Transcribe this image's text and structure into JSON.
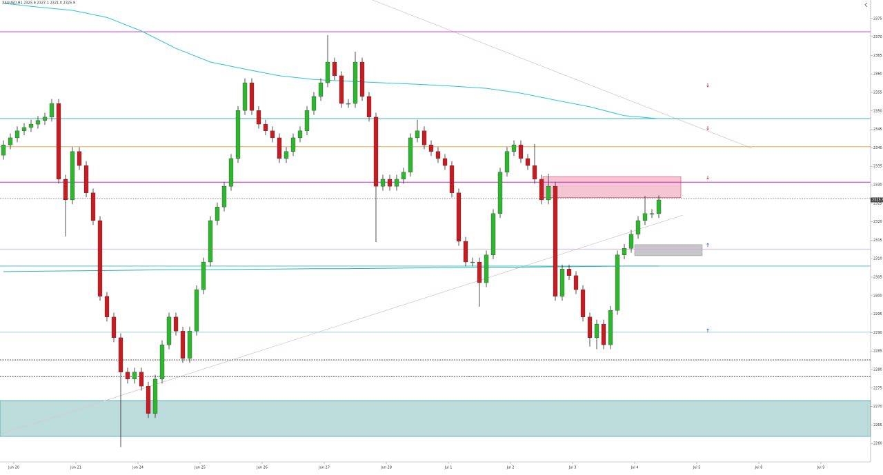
{
  "chart_data": {
    "type": "candlestick",
    "title": "XAUUSD,H1 2325.9 2327.1 2321.0 2325.9",
    "x_labels": [
      "Jun 20",
      "Jun 21",
      "Jun 24",
      "Jun 25",
      "Jun 26",
      "Jun 27",
      "Jun 28",
      "Jul 1",
      "Jul 2",
      "Jul 3",
      "Jul 4",
      "Jul 5",
      "Jul 8",
      "Jul 9"
    ],
    "ylim": [
      2255,
      2380
    ],
    "yticks": [
      2260,
      2265,
      2270,
      2275,
      2280,
      2285,
      2290,
      2295,
      2300,
      2305,
      2310,
      2315,
      2320,
      2325,
      2330,
      2335,
      2340,
      2345,
      2350,
      2355,
      2360,
      2365,
      2370,
      2375
    ],
    "series": [
      {
        "name": "XAUUSD,H1",
        "up_color": "#2fb52f",
        "down_color": "#c41e24",
        "open": [
          2338.0,
          2340.8,
          2342.7,
          2344.6,
          2345.5,
          2346.4,
          2347.4,
          2348.3,
          2352.0,
          2331.5,
          2325.9,
          2339.0,
          2335.2,
          2327.8,
          2320.3,
          2299.8,
          2294.2,
          2288.6,
          2279.3,
          2277.4,
          2279.3,
          2275.5,
          2268.1,
          2277.4,
          2286.7,
          2294.2,
          2290.4,
          2283.0,
          2290.4,
          2301.6,
          2309.1,
          2320.3,
          2324.0,
          2329.6,
          2337.1,
          2350.1,
          2357.6,
          2350.1,
          2346.4,
          2344.6,
          2342.7,
          2337.1,
          2339.0,
          2342.7,
          2344.6,
          2350.1,
          2353.9,
          2357.6,
          2363.2,
          2359.5,
          2352.0,
          2352.0,
          2363.2,
          2353.9,
          2348.3,
          2329.6,
          2331.5,
          2329.6,
          2331.5,
          2333.4,
          2342.7,
          2344.6,
          2340.8,
          2339.0,
          2337.1,
          2335.2,
          2327.8,
          2314.7,
          2309.1,
          2309.1,
          2303.5,
          2311.0,
          2322.2,
          2333.4,
          2339.0,
          2340.8,
          2337.1,
          2335.2,
          2331.5,
          2325.9,
          2329.6,
          2299.8,
          2307.2,
          2305.4,
          2301.6,
          2294.2,
          2288.6,
          2292.3,
          2286.7,
          2296.0,
          2311.0,
          2312.8,
          2316.6,
          2320.3,
          2322.2,
          2322.2
        ],
        "high": [
          2342.0,
          2343.9,
          2345.8,
          2346.7,
          2347.6,
          2348.6,
          2349.5,
          2353.2,
          2353.2,
          2332.7,
          2340.2,
          2340.2,
          2336.4,
          2329.0,
          2321.5,
          2301.0,
          2295.4,
          2289.8,
          2280.5,
          2280.5,
          2280.5,
          2276.7,
          2278.6,
          2287.9,
          2295.4,
          2295.4,
          2291.6,
          2291.6,
          2302.8,
          2310.3,
          2321.5,
          2325.2,
          2330.8,
          2338.3,
          2351.3,
          2358.8,
          2358.8,
          2351.3,
          2347.6,
          2345.8,
          2343.9,
          2340.2,
          2343.9,
          2345.8,
          2351.3,
          2355.1,
          2358.8,
          2370.5,
          2364.4,
          2360.7,
          2353.2,
          2366.0,
          2364.4,
          2355.1,
          2349.5,
          2332.7,
          2332.7,
          2332.7,
          2334.6,
          2343.9,
          2347.6,
          2345.8,
          2342.0,
          2340.2,
          2338.3,
          2336.4,
          2329.0,
          2315.9,
          2310.3,
          2310.3,
          2312.2,
          2323.4,
          2334.6,
          2340.2,
          2342.0,
          2342.0,
          2338.3,
          2341.0,
          2332.7,
          2333.0,
          2330.8,
          2308.4,
          2308.4,
          2306.6,
          2302.8,
          2295.4,
          2293.5,
          2293.5,
          2297.2,
          2312.2,
          2314.0,
          2317.8,
          2321.5,
          2327.0,
          2323.4,
          2327.1
        ],
        "low": [
          2336.8,
          2339.6,
          2341.5,
          2343.4,
          2344.3,
          2345.2,
          2346.2,
          2347.1,
          2330.3,
          2316.0,
          2324.7,
          2334.0,
          2326.6,
          2319.1,
          2298.6,
          2293.0,
          2287.4,
          2259.0,
          2276.2,
          2276.2,
          2274.3,
          2266.9,
          2266.9,
          2276.2,
          2285.5,
          2289.2,
          2281.8,
          2281.8,
          2289.2,
          2300.4,
          2307.9,
          2319.1,
          2322.8,
          2328.4,
          2335.9,
          2348.9,
          2348.9,
          2345.2,
          2343.4,
          2341.5,
          2335.9,
          2335.9,
          2337.8,
          2341.5,
          2343.4,
          2348.9,
          2352.7,
          2356.4,
          2358.3,
          2350.8,
          2350.8,
          2350.8,
          2352.7,
          2347.1,
          2314.5,
          2328.4,
          2328.4,
          2328.4,
          2330.3,
          2332.2,
          2341.5,
          2339.6,
          2337.8,
          2335.9,
          2334.0,
          2326.6,
          2313.5,
          2307.9,
          2307.9,
          2297.0,
          2302.3,
          2309.8,
          2321.0,
          2332.2,
          2337.8,
          2335.9,
          2334.0,
          2330.3,
          2324.7,
          2324.7,
          2298.6,
          2298.6,
          2304.2,
          2300.4,
          2293.0,
          2286.2,
          2285.5,
          2285.5,
          2285.5,
          2294.8,
          2309.8,
          2311.6,
          2315.4,
          2319.1,
          2321.0,
          2321.0
        ],
        "close": [
          2340.8,
          2342.7,
          2344.6,
          2345.5,
          2346.4,
          2347.4,
          2348.3,
          2352.0,
          2331.5,
          2325.9,
          2339.0,
          2335.2,
          2327.8,
          2320.3,
          2299.8,
          2294.2,
          2288.6,
          2279.3,
          2277.4,
          2279.3,
          2275.5,
          2268.1,
          2277.4,
          2286.7,
          2294.2,
          2290.4,
          2283.0,
          2290.4,
          2301.6,
          2309.1,
          2320.3,
          2324.0,
          2329.6,
          2337.1,
          2350.1,
          2357.6,
          2350.1,
          2346.4,
          2344.6,
          2342.7,
          2337.1,
          2339.0,
          2342.7,
          2344.6,
          2350.1,
          2353.9,
          2357.6,
          2363.2,
          2359.5,
          2352.0,
          2352.0,
          2363.2,
          2353.9,
          2348.3,
          2329.6,
          2331.5,
          2329.6,
          2331.5,
          2333.4,
          2342.7,
          2344.6,
          2340.8,
          2339.0,
          2337.1,
          2335.2,
          2327.8,
          2314.7,
          2309.1,
          2309.1,
          2303.5,
          2311.0,
          2322.2,
          2333.4,
          2339.0,
          2340.8,
          2337.1,
          2335.2,
          2331.5,
          2325.9,
          2329.6,
          2299.8,
          2307.2,
          2305.4,
          2301.6,
          2294.2,
          2288.6,
          2292.3,
          2286.7,
          2296.0,
          2311.0,
          2312.8,
          2316.6,
          2320.3,
          2322.2,
          2322.2,
          2325.9
        ]
      }
    ],
    "moving_averages": [
      {
        "color": "#27c3dc",
        "values": [
          2379.1,
          2378.1,
          2377.2,
          2375.3,
          2371.6,
          2366.9,
          2363.2,
          2361.3,
          2359.5,
          2358.5,
          2358.0,
          2357.6,
          2357.2,
          2356.7,
          2356.1,
          2354.8,
          2352.9,
          2351.1,
          2348.7,
          2347.9
        ]
      },
      {
        "color": "#1db3b8",
        "values": [
          2306.5,
          2306.6,
          2306.7,
          2306.8,
          2306.9,
          2307.0,
          2307.0,
          2307.1,
          2307.2,
          2307.3,
          2307.3,
          2307.4,
          2307.5,
          2307.6,
          2307.7,
          2307.7,
          2307.8,
          2307.9,
          2308.0,
          2308.0
        ]
      }
    ],
    "levels": [
      {
        "value": 2371.4,
        "color": "#c81ec8",
        "style": "solid"
      },
      {
        "value": 2347.9,
        "color": "#1aa6a6",
        "style": "solid"
      },
      {
        "value": 2340.3,
        "color": "#e0a030",
        "style": "solid"
      },
      {
        "value": 2330.7,
        "color": "#c81ec8",
        "style": "solid"
      },
      {
        "value": 2326.3,
        "color": "#888888",
        "style": "dashed"
      },
      {
        "value": 2312.6,
        "color": "#c9a8e0",
        "style": "solid"
      },
      {
        "value": 2308.0,
        "color": "#30b8b8",
        "style": "solid"
      },
      {
        "value": 2290.1,
        "color": "#8fd3d8",
        "style": "solid"
      },
      {
        "value": 2282.6,
        "color": "#333333",
        "style": "dashed"
      },
      {
        "value": 2278.1,
        "color": "#333333",
        "style": "dashed"
      }
    ],
    "zones": [
      {
        "from": 2261.9,
        "to": 2271.6,
        "color": "#bcdcdc"
      },
      {
        "from": 2326.5,
        "to": 2332.2,
        "color": "#f6c5d4"
      },
      {
        "from": 2310.8,
        "to": 2313.8,
        "color": "#c8c6c8"
      }
    ]
  }
}
